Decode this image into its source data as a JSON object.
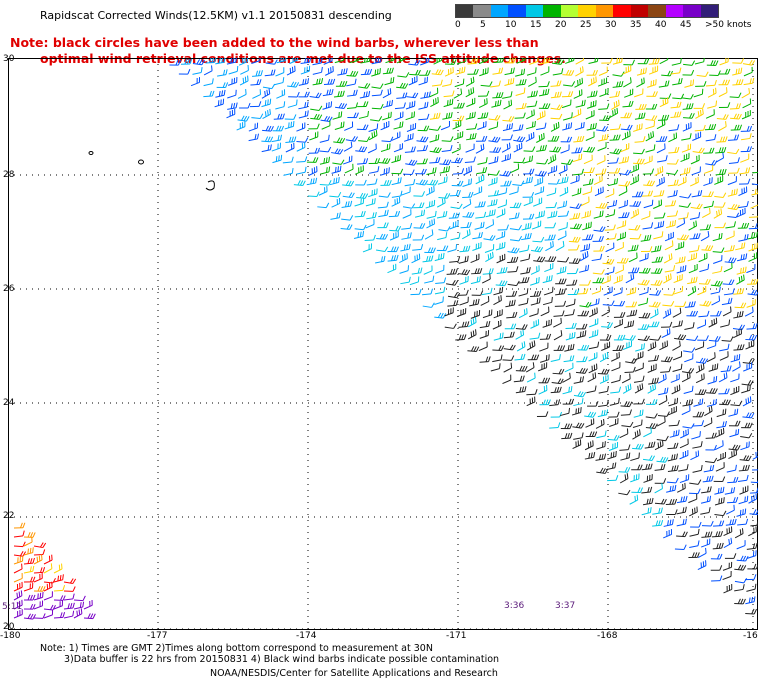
{
  "title": "Rapidscat Corrected Winds(12.5KM) v1.1 20150831 descending",
  "note_line1": "Note: black circles have been added to the wind barbs, wherever less than",
  "note_line2": "optimal wind retrieval conditions are met due to the ISS attitude changes.",
  "legend": {
    "colors": [
      "#3a3a3a",
      "#8a8a8a",
      "#00a6ff",
      "#0050ff",
      "#00c8e6",
      "#00b400",
      "#b4ff32",
      "#ffd200",
      "#ff9600",
      "#ff0000",
      "#c00000",
      "#8b4513",
      "#b400ff",
      "#7800c8",
      "#321e78"
    ],
    "labels": [
      "0",
      "5",
      "10",
      "15",
      "20",
      "25",
      "30",
      "35",
      "40",
      "45",
      ">50 knots"
    ]
  },
  "lat_labels": [
    "30",
    "28",
    "26",
    "24",
    "22",
    "20"
  ],
  "lon_labels": [
    "-180",
    "-177",
    "-174",
    "-171",
    "-168",
    "-16"
  ],
  "times": [
    "5:11",
    "3:36",
    "3:37"
  ],
  "footnote_line1": "Note: 1) Times are GMT 2)Times along bottom correspond to measurement at 30N",
  "footnote_line2": "3)Data buffer is 22 hrs from 20150831 4) Black wind barbs indicate possible contamination",
  "credit": "NOAA/NESDIS/Center for Satellite Applications and Research"
}
